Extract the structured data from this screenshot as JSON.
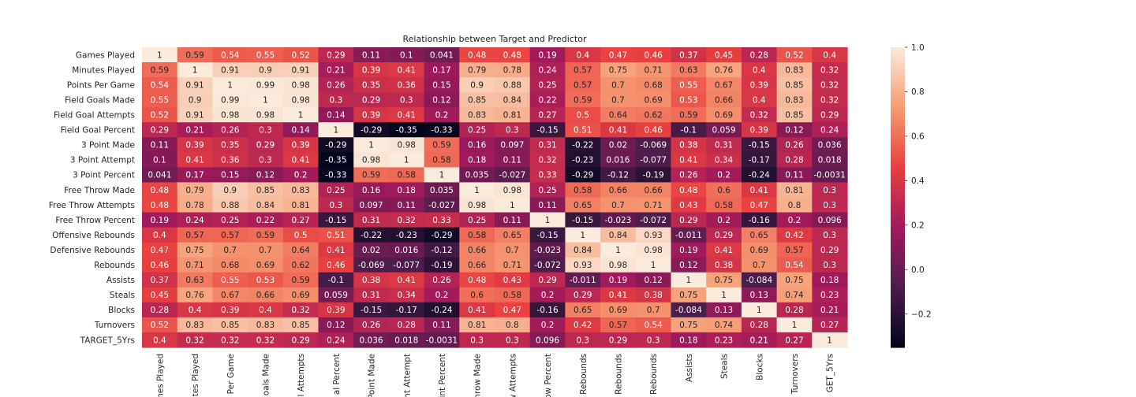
{
  "chart_data": {
    "type": "heatmap",
    "title": "Relationship between Target and Predictor",
    "row_labels": [
      "Games Played",
      "Minutes Played",
      "Points Per Game",
      "Field Goals Made",
      "Field Goal Attempts",
      "Field Goal Percent",
      "3 Point Made",
      "3 Point Attempt",
      "3 Point Percent",
      "Free Throw Made",
      "Free Throw Attempts",
      "Free Throw Percent",
      "Offensive Rebounds",
      "Defensive Rebounds",
      "Rebounds",
      "Assists",
      "Steals",
      "Blocks",
      "Turnovers",
      "TARGET_5Yrs"
    ],
    "column_labels_visible": [
      "ames Played",
      "utes Played",
      "Per Game",
      "oals Made",
      "al Attempts",
      "al Percent",
      "Point Made",
      "oint Attempt",
      "oint Percent",
      "hrow Made",
      "w Attempts",
      "ow Percent",
      "Rebounds",
      "Rebounds",
      "Rebounds",
      "Assists",
      "Steals",
      "Blocks",
      "Turnovers",
      "GET_5Yrs"
    ],
    "values": [
      [
        1,
        0.59,
        0.54,
        0.55,
        0.52,
        0.29,
        0.11,
        0.1,
        0.041,
        0.48,
        0.48,
        0.19,
        0.4,
        0.47,
        0.46,
        0.37,
        0.45,
        0.28,
        0.52,
        0.4
      ],
      [
        0.59,
        1,
        0.91,
        0.9,
        0.91,
        0.21,
        0.39,
        0.41,
        0.17,
        0.79,
        0.78,
        0.24,
        0.57,
        0.75,
        0.71,
        0.63,
        0.76,
        0.4,
        0.83,
        0.32
      ],
      [
        0.54,
        0.91,
        1,
        0.99,
        0.98,
        0.26,
        0.35,
        0.36,
        0.15,
        0.9,
        0.88,
        0.25,
        0.57,
        0.7,
        0.68,
        0.55,
        0.67,
        0.39,
        0.85,
        0.32
      ],
      [
        0.55,
        0.9,
        0.99,
        1,
        0.98,
        0.3,
        0.29,
        0.3,
        0.12,
        0.85,
        0.84,
        0.22,
        0.59,
        0.7,
        0.69,
        0.53,
        0.66,
        0.4,
        0.83,
        0.32
      ],
      [
        0.52,
        0.91,
        0.98,
        0.98,
        1,
        0.14,
        0.39,
        0.41,
        0.2,
        0.83,
        0.81,
        0.27,
        0.5,
        0.64,
        0.62,
        0.59,
        0.69,
        0.32,
        0.85,
        0.29
      ],
      [
        0.29,
        0.21,
        0.26,
        0.3,
        0.14,
        1,
        -0.29,
        -0.35,
        -0.33,
        0.25,
        0.3,
        -0.15,
        0.51,
        0.41,
        0.46,
        -0.1,
        0.059,
        0.39,
        0.12,
        0.24
      ],
      [
        0.11,
        0.39,
        0.35,
        0.29,
        0.39,
        -0.29,
        1,
        0.98,
        0.59,
        0.16,
        0.097,
        0.31,
        -0.22,
        0.02,
        -0.069,
        0.38,
        0.31,
        -0.15,
        0.26,
        0.036
      ],
      [
        0.1,
        0.41,
        0.36,
        0.3,
        0.41,
        -0.35,
        0.98,
        1,
        0.58,
        0.18,
        0.11,
        0.32,
        -0.23,
        0.016,
        -0.077,
        0.41,
        0.34,
        -0.17,
        0.28,
        0.018
      ],
      [
        0.041,
        0.17,
        0.15,
        0.12,
        0.2,
        -0.33,
        0.59,
        0.58,
        1,
        0.035,
        -0.027,
        0.33,
        -0.29,
        -0.12,
        -0.19,
        0.26,
        0.2,
        -0.24,
        0.11,
        -0.0031
      ],
      [
        0.48,
        0.79,
        0.9,
        0.85,
        0.83,
        0.25,
        0.16,
        0.18,
        0.035,
        1,
        0.98,
        0.25,
        0.58,
        0.66,
        0.66,
        0.48,
        0.6,
        0.41,
        0.81,
        0.3
      ],
      [
        0.48,
        0.78,
        0.88,
        0.84,
        0.81,
        0.3,
        0.097,
        0.11,
        -0.027,
        0.98,
        1,
        0.11,
        0.65,
        0.7,
        0.71,
        0.43,
        0.58,
        0.47,
        0.8,
        0.3
      ],
      [
        0.19,
        0.24,
        0.25,
        0.22,
        0.27,
        -0.15,
        0.31,
        0.32,
        0.33,
        0.25,
        0.11,
        1,
        -0.15,
        -0.023,
        -0.072,
        0.29,
        0.2,
        -0.16,
        0.2,
        0.096
      ],
      [
        0.4,
        0.57,
        0.57,
        0.59,
        0.5,
        0.51,
        -0.22,
        -0.23,
        -0.29,
        0.58,
        0.65,
        -0.15,
        1,
        0.84,
        0.93,
        -0.011,
        0.29,
        0.65,
        0.42,
        0.3
      ],
      [
        0.47,
        0.75,
        0.7,
        0.7,
        0.64,
        0.41,
        0.02,
        0.016,
        -0.12,
        0.66,
        0.7,
        -0.023,
        0.84,
        1,
        0.98,
        0.19,
        0.41,
        0.69,
        0.57,
        0.29
      ],
      [
        0.46,
        0.71,
        0.68,
        0.69,
        0.62,
        0.46,
        -0.069,
        -0.077,
        -0.19,
        0.66,
        0.71,
        -0.072,
        0.93,
        0.98,
        1,
        0.12,
        0.38,
        0.7,
        0.54,
        0.3
      ],
      [
        0.37,
        0.63,
        0.55,
        0.53,
        0.59,
        -0.1,
        0.38,
        0.41,
        0.26,
        0.48,
        0.43,
        0.29,
        -0.011,
        0.19,
        0.12,
        1,
        0.75,
        -0.084,
        0.75,
        0.18
      ],
      [
        0.45,
        0.76,
        0.67,
        0.66,
        0.69,
        0.059,
        0.31,
        0.34,
        0.2,
        0.6,
        0.58,
        0.2,
        0.29,
        0.41,
        0.38,
        0.75,
        1,
        0.13,
        0.74,
        0.23
      ],
      [
        0.28,
        0.4,
        0.39,
        0.4,
        0.32,
        0.39,
        -0.15,
        -0.17,
        -0.24,
        0.41,
        0.47,
        -0.16,
        0.65,
        0.69,
        0.7,
        -0.084,
        0.13,
        1,
        0.28,
        0.21
      ],
      [
        0.52,
        0.83,
        0.85,
        0.83,
        0.85,
        0.12,
        0.26,
        0.28,
        0.11,
        0.81,
        0.8,
        0.2,
        0.42,
        0.57,
        0.54,
        0.75,
        0.74,
        0.28,
        1,
        0.27
      ],
      [
        0.4,
        0.32,
        0.32,
        0.32,
        0.29,
        0.24,
        0.036,
        0.018,
        -0.0031,
        0.3,
        0.3,
        0.096,
        0.3,
        0.29,
        0.3,
        0.18,
        0.23,
        0.21,
        0.27,
        1
      ]
    ],
    "value_labels": [
      [
        "1",
        "0.59",
        "0.54",
        "0.55",
        "0.52",
        "0.29",
        "0.11",
        "0.1",
        "0.041",
        "0.48",
        "0.48",
        "0.19",
        "0.4",
        "0.47",
        "0.46",
        "0.37",
        "0.45",
        "0.28",
        "0.52",
        "0.4"
      ],
      [
        "0.59",
        "1",
        "0.91",
        "0.9",
        "0.91",
        "0.21",
        "0.39",
        "0.41",
        "0.17",
        "0.79",
        "0.78",
        "0.24",
        "0.57",
        "0.75",
        "0.71",
        "0.63",
        "0.76",
        "0.4",
        "0.83",
        "0.32"
      ],
      [
        "0.54",
        "0.91",
        "1",
        "0.99",
        "0.98",
        "0.26",
        "0.35",
        "0.36",
        "0.15",
        "0.9",
        "0.88",
        "0.25",
        "0.57",
        "0.7",
        "0.68",
        "0.55",
        "0.67",
        "0.39",
        "0.85",
        "0.32"
      ],
      [
        "0.55",
        "0.9",
        "0.99",
        "1",
        "0.98",
        "0.3",
        "0.29",
        "0.3",
        "0.12",
        "0.85",
        "0.84",
        "0.22",
        "0.59",
        "0.7",
        "0.69",
        "0.53",
        "0.66",
        "0.4",
        "0.83",
        "0.32"
      ],
      [
        "0.52",
        "0.91",
        "0.98",
        "0.98",
        "1",
        "0.14",
        "0.39",
        "0.41",
        "0.2",
        "0.83",
        "0.81",
        "0.27",
        "0.5",
        "0.64",
        "0.62",
        "0.59",
        "0.69",
        "0.32",
        "0.85",
        "0.29"
      ],
      [
        "0.29",
        "0.21",
        "0.26",
        "0.3",
        "0.14",
        "1",
        "-0.29",
        "-0.35",
        "-0.33",
        "0.25",
        "0.3",
        "-0.15",
        "0.51",
        "0.41",
        "0.46",
        "-0.1",
        "0.059",
        "0.39",
        "0.12",
        "0.24"
      ],
      [
        "0.11",
        "0.39",
        "0.35",
        "0.29",
        "0.39",
        "-0.29",
        "1",
        "0.98",
        "0.59",
        "0.16",
        "0.097",
        "0.31",
        "-0.22",
        "0.02",
        "-0.069",
        "0.38",
        "0.31",
        "-0.15",
        "0.26",
        "0.036"
      ],
      [
        "0.1",
        "0.41",
        "0.36",
        "0.3",
        "0.41",
        "-0.35",
        "0.98",
        "1",
        "0.58",
        "0.18",
        "0.11",
        "0.32",
        "-0.23",
        "0.016",
        "-0.077",
        "0.41",
        "0.34",
        "-0.17",
        "0.28",
        "0.018"
      ],
      [
        "0.041",
        "0.17",
        "0.15",
        "0.12",
        "0.2",
        "-0.33",
        "0.59",
        "0.58",
        "1",
        "0.035",
        "-0.027",
        "0.33",
        "-0.29",
        "-0.12",
        "-0.19",
        "0.26",
        "0.2",
        "-0.24",
        "0.11",
        "-0.0031"
      ],
      [
        "0.48",
        "0.79",
        "0.9",
        "0.85",
        "0.83",
        "0.25",
        "0.16",
        "0.18",
        "0.035",
        "1",
        "0.98",
        "0.25",
        "0.58",
        "0.66",
        "0.66",
        "0.48",
        "0.6",
        "0.41",
        "0.81",
        "0.3"
      ],
      [
        "0.48",
        "0.78",
        "0.88",
        "0.84",
        "0.81",
        "0.3",
        "0.097",
        "0.11",
        "-0.027",
        "0.98",
        "1",
        "0.11",
        "0.65",
        "0.7",
        "0.71",
        "0.43",
        "0.58",
        "0.47",
        "0.8",
        "0.3"
      ],
      [
        "0.19",
        "0.24",
        "0.25",
        "0.22",
        "0.27",
        "-0.15",
        "0.31",
        "0.32",
        "0.33",
        "0.25",
        "0.11",
        "1",
        "-0.15",
        "-0.023",
        "-0.072",
        "0.29",
        "0.2",
        "-0.16",
        "0.2",
        "0.096"
      ],
      [
        "0.4",
        "0.57",
        "0.57",
        "0.59",
        "0.5",
        "0.51",
        "-0.22",
        "-0.23",
        "-0.29",
        "0.58",
        "0.65",
        "-0.15",
        "1",
        "0.84",
        "0.93",
        "-0.011",
        "0.29",
        "0.65",
        "0.42",
        "0.3"
      ],
      [
        "0.47",
        "0.75",
        "0.7",
        "0.7",
        "0.64",
        "0.41",
        "0.02",
        "0.016",
        "-0.12",
        "0.66",
        "0.7",
        "-0.023",
        "0.84",
        "1",
        "0.98",
        "0.19",
        "0.41",
        "0.69",
        "0.57",
        "0.29"
      ],
      [
        "0.46",
        "0.71",
        "0.68",
        "0.69",
        "0.62",
        "0.46",
        "-0.069",
        "-0.077",
        "-0.19",
        "0.66",
        "0.71",
        "-0.072",
        "0.93",
        "0.98",
        "1",
        "0.12",
        "0.38",
        "0.7",
        "0.54",
        "0.3"
      ],
      [
        "0.37",
        "0.63",
        "0.55",
        "0.53",
        "0.59",
        "-0.1",
        "0.38",
        "0.41",
        "0.26",
        "0.48",
        "0.43",
        "0.29",
        "-0.011",
        "0.19",
        "0.12",
        "1",
        "0.75",
        "-0.084",
        "0.75",
        "0.18"
      ],
      [
        "0.45",
        "0.76",
        "0.67",
        "0.66",
        "0.69",
        "0.059",
        "0.31",
        "0.34",
        "0.2",
        "0.6",
        "0.58",
        "0.2",
        "0.29",
        "0.41",
        "0.38",
        "0.75",
        "1",
        "0.13",
        "0.74",
        "0.23"
      ],
      [
        "0.28",
        "0.4",
        "0.39",
        "0.4",
        "0.32",
        "0.39",
        "-0.15",
        "-0.17",
        "-0.24",
        "0.41",
        "0.47",
        "-0.16",
        "0.65",
        "0.69",
        "0.7",
        "-0.084",
        "0.13",
        "1",
        "0.28",
        "0.21"
      ],
      [
        "0.52",
        "0.83",
        "0.85",
        "0.83",
        "0.85",
        "0.12",
        "0.26",
        "0.28",
        "0.11",
        "0.81",
        "0.8",
        "0.2",
        "0.42",
        "0.57",
        "0.54",
        "0.75",
        "0.74",
        "0.28",
        "1",
        "0.27"
      ],
      [
        "0.4",
        "0.32",
        "0.32",
        "0.32",
        "0.29",
        "0.24",
        "0.036",
        "0.018",
        "-0.0031",
        "0.3",
        "0.3",
        "0.096",
        "0.3",
        "0.29",
        "0.3",
        "0.18",
        "0.23",
        "0.21",
        "0.27",
        "1"
      ]
    ],
    "colorbar": {
      "vmin": -0.35,
      "vmax": 1.0,
      "ticks": [
        -0.2,
        0.0,
        0.2,
        0.4,
        0.6,
        0.8,
        1.0
      ],
      "tick_labels": [
        "−0.2",
        "0.0",
        "0.2",
        "0.4",
        "0.6",
        "0.8",
        "1.0"
      ]
    },
    "colormap_stops": [
      "#03051a",
      "#4c1d4b",
      "#a11a5b",
      "#e83f3f",
      "#f69c73",
      "#faebdd"
    ],
    "grid": false,
    "legend": "colorbar-right"
  }
}
